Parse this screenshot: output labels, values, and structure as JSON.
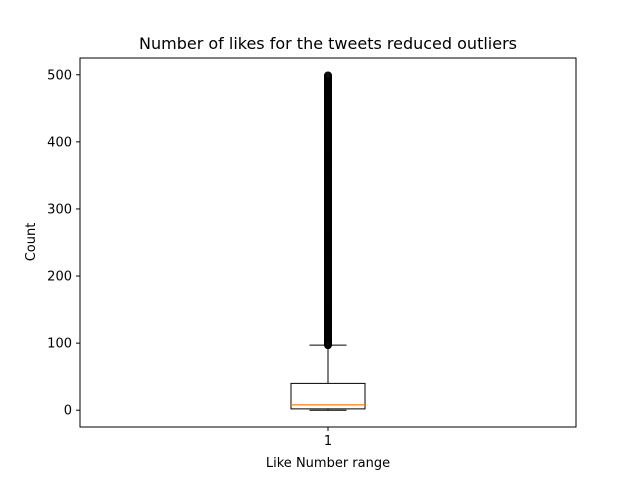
{
  "chart_data": {
    "type": "box",
    "title": "Number of likes for the tweets reduced outliers",
    "xlabel": "Like Number range",
    "ylabel": "Count",
    "xticks": [
      "1"
    ],
    "yticks": [
      0,
      100,
      200,
      300,
      400,
      500
    ],
    "ylim": [
      -25,
      525
    ],
    "grid": false,
    "colors": {
      "box": "#000000",
      "median": "#ff7f0e",
      "outlier": "#000000"
    },
    "boxes": [
      {
        "label": "1",
        "whisker_low": 0,
        "q1": 2,
        "median": 8,
        "q3": 40,
        "whisker_high": 97,
        "outliers_range": [
          97,
          500
        ]
      }
    ]
  }
}
